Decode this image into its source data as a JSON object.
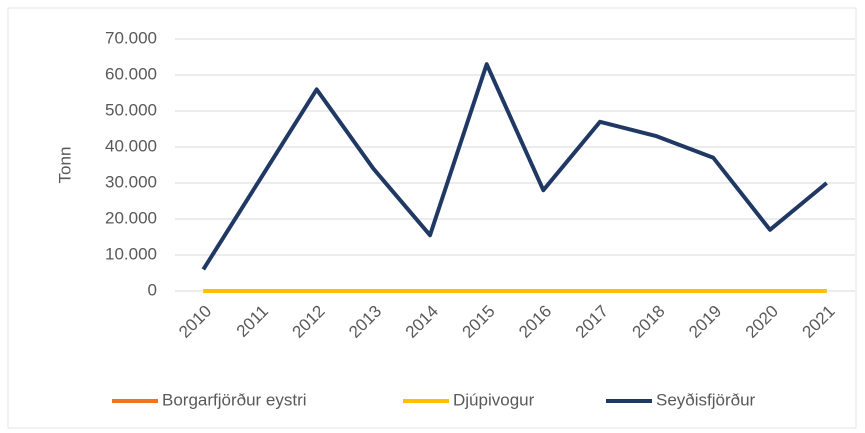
{
  "chart_data": {
    "type": "line",
    "y_label": "Tonn",
    "categories": [
      "2010",
      "2011",
      "2012",
      "2013",
      "2014",
      "2015",
      "2016",
      "2017",
      "2018",
      "2019",
      "2020",
      "2021"
    ],
    "series": [
      {
        "name": "Borgarfjörður eystri",
        "color": "#f4731f",
        "values": [
          0,
          0,
          0,
          0,
          0,
          0,
          0,
          0,
          0,
          0,
          0,
          0
        ]
      },
      {
        "name": "Djúpivogur",
        "color": "#ffc000",
        "values": [
          0,
          0,
          0,
          0,
          0,
          0,
          0,
          0,
          0,
          0,
          0,
          0
        ]
      },
      {
        "name": "Seyðisfjörður",
        "color": "#203864",
        "values": [
          6000,
          31000,
          56000,
          34000,
          15500,
          63000,
          28000,
          47000,
          43000,
          37000,
          17000,
          30000
        ]
      }
    ],
    "ylim": [
      0,
      70000
    ],
    "yticks": [
      0,
      {
        "value": 10000,
        "label": "10.000"
      },
      {
        "value": 20000,
        "label": "20.000"
      },
      {
        "value": 30000,
        "label": "30.000"
      },
      {
        "value": 40000,
        "label": "40.000"
      },
      {
        "value": 50000,
        "label": "50.000"
      },
      {
        "value": 60000,
        "label": "60.000"
      },
      {
        "value": 70000,
        "label": "70.000"
      }
    ],
    "grid": true,
    "legend": "bottom"
  }
}
